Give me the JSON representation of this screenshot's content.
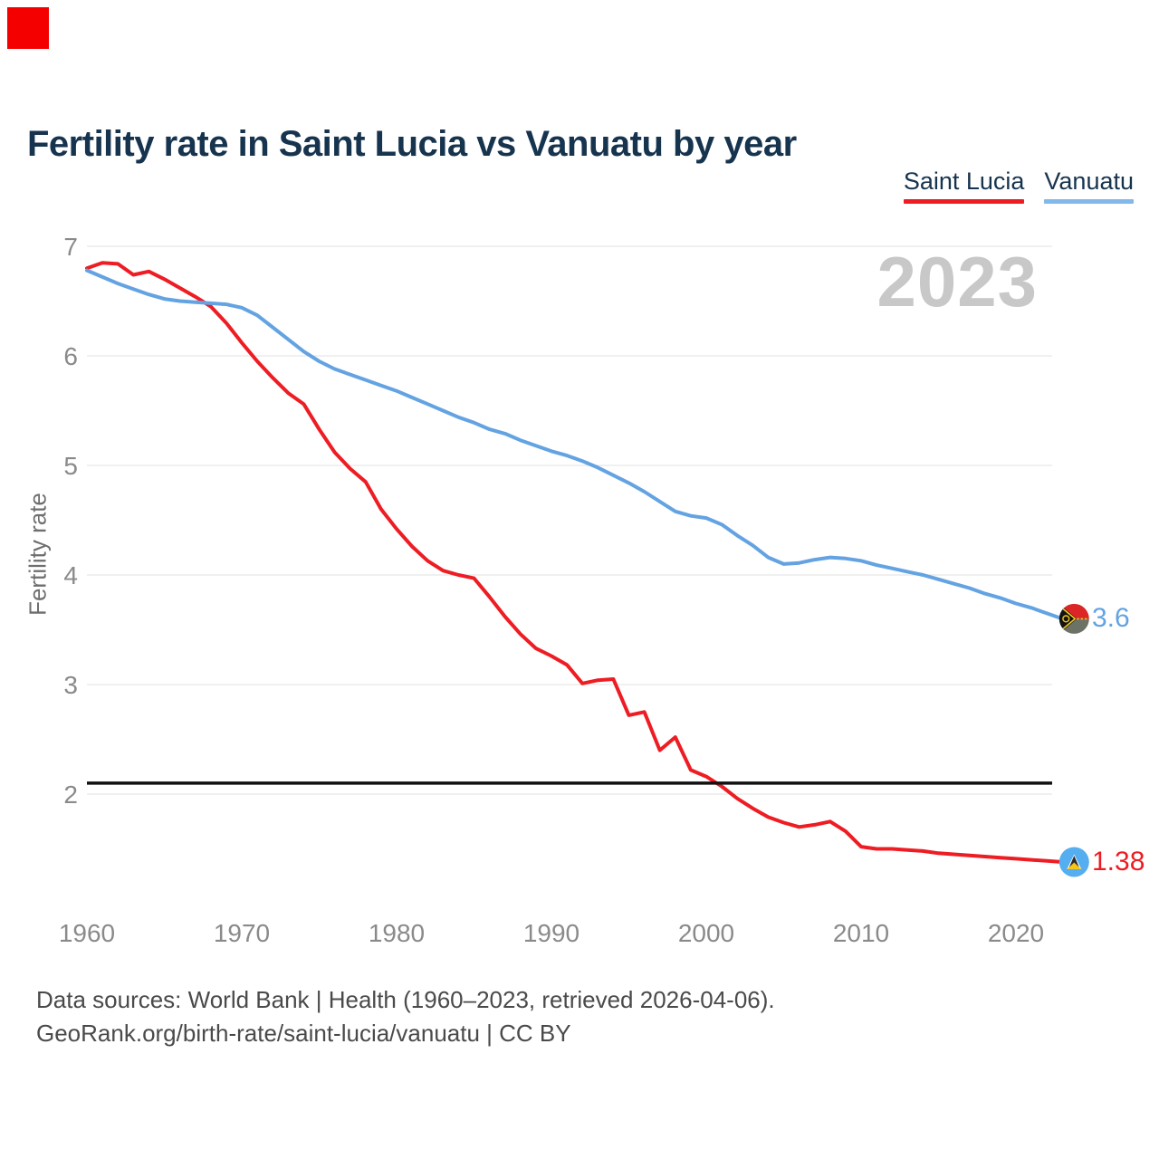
{
  "marker_square": {
    "color": "#f40000"
  },
  "header": {
    "title": "Fertility rate in Saint Lucia vs Vanuatu by year"
  },
  "legend": [
    {
      "label": "Saint Lucia",
      "color": "#ee1c23"
    },
    {
      "label": "Vanuatu",
      "color": "#82b8ea"
    }
  ],
  "watermark": "2023",
  "footer": {
    "line1": "Data sources: World Bank | Health (1960–2023, retrieved 2026-04-06).",
    "line2": "GeoRank.org/birth-rate/saint-lucia/vanuatu | CC BY"
  },
  "chart_data": {
    "type": "line",
    "title": "Fertility rate in Saint Lucia vs Vanuatu by year",
    "xlabel": "",
    "ylabel": "Fertility rate",
    "xlim": [
      1960,
      2023
    ],
    "ylim": [
      1,
      7
    ],
    "grid": true,
    "legend_position": "top-right",
    "x_ticks": [
      1960,
      1970,
      1980,
      1990,
      2000,
      2010,
      2020
    ],
    "y_ticks": [
      7,
      6,
      5,
      4,
      3,
      2
    ],
    "reference_line": {
      "value": 2.1,
      "color": "#111111",
      "label": ""
    },
    "years": [
      1960,
      1961,
      1962,
      1963,
      1964,
      1965,
      1966,
      1967,
      1968,
      1969,
      1970,
      1971,
      1972,
      1973,
      1974,
      1975,
      1976,
      1977,
      1978,
      1979,
      1980,
      1981,
      1982,
      1983,
      1984,
      1985,
      1986,
      1987,
      1988,
      1989,
      1990,
      1991,
      1992,
      1993,
      1994,
      1995,
      1996,
      1997,
      1998,
      1999,
      2000,
      2001,
      2002,
      2003,
      2004,
      2005,
      2006,
      2007,
      2008,
      2009,
      2010,
      2011,
      2012,
      2013,
      2014,
      2015,
      2016,
      2017,
      2018,
      2019,
      2020,
      2021,
      2022,
      2023
    ],
    "series": [
      {
        "name": "Saint Lucia",
        "color": "#ee1c23",
        "end_label": "1.38",
        "end_value": 1.38,
        "flag": "saint-lucia",
        "values": [
          6.8,
          6.85,
          6.84,
          6.74,
          6.77,
          6.7,
          6.62,
          6.54,
          6.45,
          6.3,
          6.12,
          5.95,
          5.8,
          5.66,
          5.56,
          5.33,
          5.12,
          4.97,
          4.85,
          4.6,
          4.42,
          4.26,
          4.13,
          4.04,
          4.0,
          3.97,
          3.8,
          3.62,
          3.46,
          3.33,
          3.26,
          3.18,
          3.01,
          3.04,
          3.05,
          2.72,
          2.75,
          2.4,
          2.52,
          2.22,
          2.16,
          2.07,
          1.96,
          1.87,
          1.79,
          1.74,
          1.7,
          1.72,
          1.75,
          1.66,
          1.52,
          1.5,
          1.5,
          1.49,
          1.48,
          1.46,
          1.45,
          1.44,
          1.43,
          1.42,
          1.41,
          1.4,
          1.39,
          1.38
        ]
      },
      {
        "name": "Vanuatu",
        "color": "#64a3e2",
        "end_label": "3.6",
        "end_value": 3.6,
        "flag": "vanuatu",
        "values": [
          6.78,
          6.72,
          6.66,
          6.61,
          6.56,
          6.52,
          6.5,
          6.49,
          6.48,
          6.47,
          6.44,
          6.37,
          6.26,
          6.15,
          6.04,
          5.95,
          5.88,
          5.83,
          5.78,
          5.73,
          5.68,
          5.62,
          5.56,
          5.5,
          5.44,
          5.39,
          5.33,
          5.29,
          5.23,
          5.18,
          5.13,
          5.09,
          5.04,
          4.98,
          4.91,
          4.84,
          4.76,
          4.67,
          4.58,
          4.54,
          4.52,
          4.46,
          4.36,
          4.27,
          4.16,
          4.1,
          4.11,
          4.14,
          4.16,
          4.15,
          4.13,
          4.09,
          4.06,
          4.03,
          4.0,
          3.96,
          3.92,
          3.88,
          3.83,
          3.79,
          3.74,
          3.7,
          3.65,
          3.6
        ]
      }
    ]
  }
}
